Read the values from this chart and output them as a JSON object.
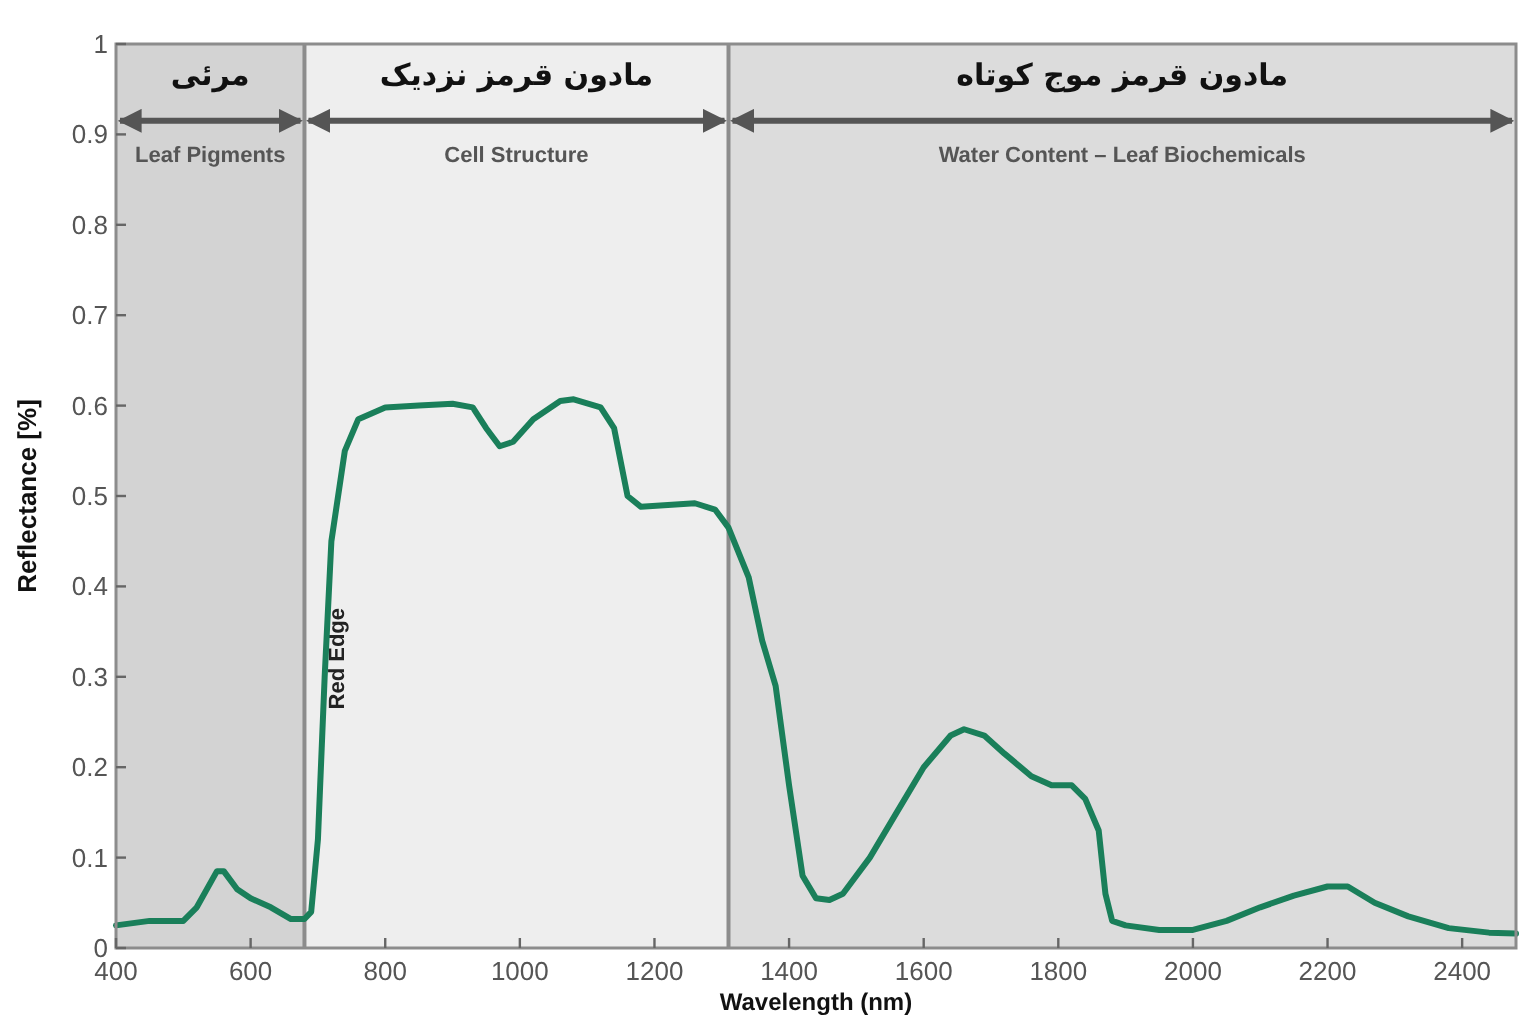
{
  "chart_data": {
    "type": "line",
    "xlabel": "Wavelength (nm)",
    "ylabel": "Reflectance [%]",
    "xlim": [
      400,
      2480
    ],
    "ylim": [
      0,
      1
    ],
    "xticks": [
      400,
      600,
      800,
      1000,
      1200,
      1400,
      1600,
      1800,
      2000,
      2200,
      2400
    ],
    "yticks": [
      0,
      0.1,
      0.2,
      0.3,
      0.4,
      0.5,
      0.6,
      0.7,
      0.8,
      0.9,
      1
    ],
    "line_style": "solid",
    "bands": [
      {
        "axis": "x",
        "from": 400,
        "to": 680,
        "label": "مرئی",
        "color": "#d3d3d3"
      },
      {
        "axis": "x",
        "from": 680,
        "to": 1310,
        "label": "مادون قرمز نزدیک",
        "color": "#eeeeee"
      },
      {
        "axis": "x",
        "from": 1310,
        "to": 2480,
        "label": "مادون قرمز موج کوتاه",
        "color": "#dcdcdc"
      }
    ],
    "ref_lines": [
      {
        "axis": "x",
        "value": 680,
        "color": "#8c8c8c"
      },
      {
        "axis": "x",
        "value": 1310,
        "color": "#8c8c8c"
      }
    ],
    "annotations": [
      "Leaf Pigments",
      "Cell Structure",
      "Water Content – Leaf Biochemicals",
      "Red Edge"
    ],
    "series": [
      {
        "color": "#1a7f5a",
        "x": [
          400,
          450,
          500,
          520,
          550,
          560,
          580,
          600,
          630,
          660,
          680,
          690,
          700,
          710,
          720,
          740,
          760,
          800,
          850,
          900,
          930,
          950,
          970,
          990,
          1020,
          1060,
          1080,
          1120,
          1140,
          1160,
          1180,
          1220,
          1260,
          1290,
          1310,
          1340,
          1360,
          1380,
          1400,
          1420,
          1440,
          1460,
          1480,
          1520,
          1560,
          1600,
          1640,
          1660,
          1690,
          1720,
          1760,
          1790,
          1820,
          1840,
          1860,
          1870,
          1880,
          1900,
          1950,
          2000,
          2050,
          2100,
          2150,
          2200,
          2230,
          2270,
          2320,
          2380,
          2440,
          2480
        ],
        "values": [
          0.025,
          0.03,
          0.03,
          0.045,
          0.085,
          0.085,
          0.065,
          0.055,
          0.045,
          0.032,
          0.032,
          0.04,
          0.12,
          0.3,
          0.45,
          0.55,
          0.585,
          0.598,
          0.6,
          0.602,
          0.598,
          0.575,
          0.555,
          0.56,
          0.585,
          0.605,
          0.607,
          0.598,
          0.575,
          0.5,
          0.488,
          0.49,
          0.492,
          0.485,
          0.465,
          0.41,
          0.34,
          0.29,
          0.18,
          0.08,
          0.055,
          0.053,
          0.06,
          0.1,
          0.15,
          0.2,
          0.235,
          0.242,
          0.235,
          0.215,
          0.19,
          0.18,
          0.18,
          0.165,
          0.13,
          0.06,
          0.03,
          0.025,
          0.02,
          0.02,
          0.03,
          0.045,
          0.058,
          0.068,
          0.068,
          0.05,
          0.035,
          0.022,
          0.017,
          0.016
        ]
      }
    ]
  }
}
